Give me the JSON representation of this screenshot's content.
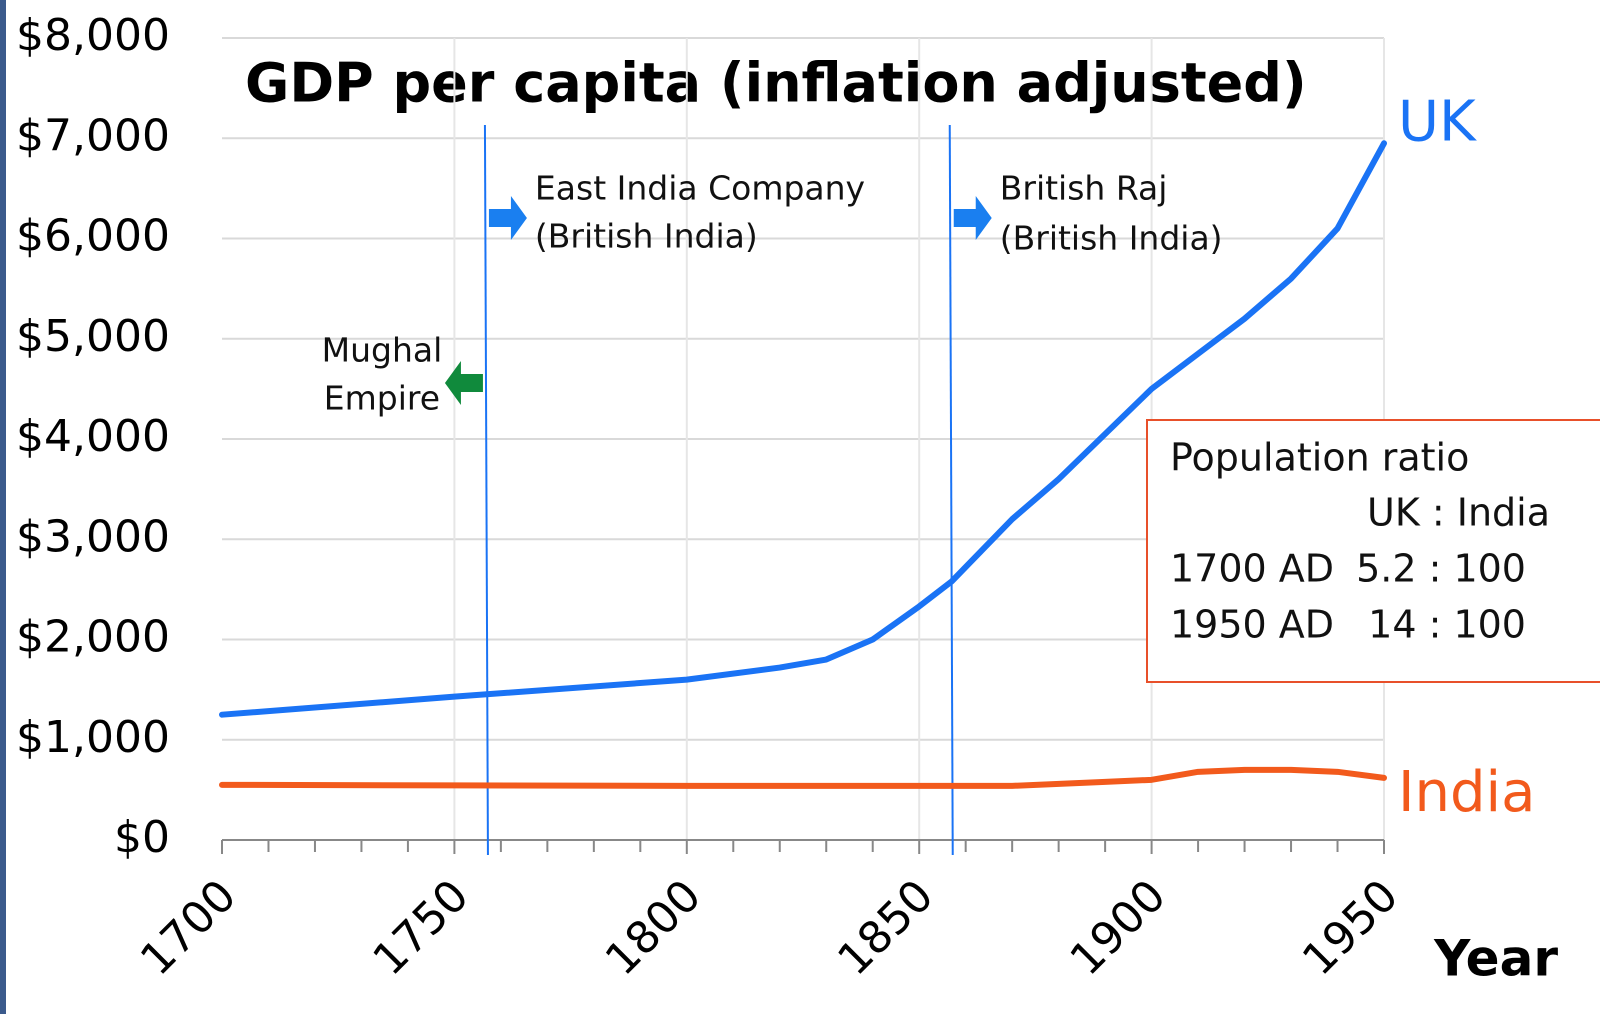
{
  "chart_data": {
    "type": "line",
    "title": "GDP per capita (inflation adjusted)",
    "x_label": "Year",
    "xlim": [
      1700,
      1950
    ],
    "xticks": [
      1700,
      1750,
      1800,
      1850,
      1900,
      1950
    ],
    "xminorticks": [
      1710,
      1720,
      1730,
      1740,
      1760,
      1770,
      1780,
      1790,
      1810,
      1820,
      1830,
      1840,
      1860,
      1870,
      1880,
      1890,
      1910,
      1920,
      1930,
      1940
    ],
    "ylim": [
      0,
      8000
    ],
    "yticks": [
      {
        "value": 0,
        "label": "$0"
      },
      {
        "value": 1000,
        "label": "$1,000"
      },
      {
        "value": 2000,
        "label": "$2,000"
      },
      {
        "value": 3000,
        "label": "$3,000"
      },
      {
        "value": 4000,
        "label": "$4,000"
      },
      {
        "value": 5000,
        "label": "$5,000"
      },
      {
        "value": 6000,
        "label": "$6,000"
      },
      {
        "value": 7000,
        "label": "$7,000"
      },
      {
        "value": 8000,
        "label": "$8,000"
      }
    ],
    "grid": true,
    "series": [
      {
        "name": "UK",
        "color": "#1a73f5",
        "x": [
          1700,
          1750,
          1800,
          1820,
          1830,
          1840,
          1850,
          1857,
          1870,
          1880,
          1890,
          1900,
          1910,
          1920,
          1930,
          1940,
          1950
        ],
        "values": [
          1250,
          1430,
          1600,
          1720,
          1800,
          2000,
          2330,
          2580,
          3200,
          3600,
          4050,
          4500,
          4850,
          5200,
          5600,
          6100,
          6950
        ]
      },
      {
        "name": "India",
        "color": "#f25a1c",
        "x": [
          1700,
          1750,
          1800,
          1850,
          1870,
          1890,
          1900,
          1910,
          1920,
          1930,
          1940,
          1950
        ],
        "values": [
          550,
          545,
          540,
          540,
          540,
          580,
          600,
          680,
          700,
          700,
          680,
          620
        ]
      }
    ],
    "events": [
      {
        "x": 1757,
        "color": "#1a73f5"
      },
      {
        "x": 1857,
        "color": "#1a73f5"
      }
    ],
    "annotations": [
      {
        "lines": [
          "East India Company",
          "(British India)"
        ],
        "side": "right",
        "arrow_color": "#1a7ff0"
      },
      {
        "lines": [
          "Mughal",
          "Empire"
        ],
        "side": "left",
        "arrow_color": "#108a3c"
      },
      {
        "lines": [
          "British Raj",
          "(British India)"
        ],
        "side": "right",
        "arrow_color": "#1a7ff0"
      }
    ],
    "text_box": {
      "title": "Population ratio",
      "header": "UK : India",
      "rows": [
        [
          "1700 AD",
          "5.2 : 100"
        ],
        [
          "1950 AD",
          "14 : 100"
        ]
      ],
      "border_color": "#e8502a"
    }
  }
}
